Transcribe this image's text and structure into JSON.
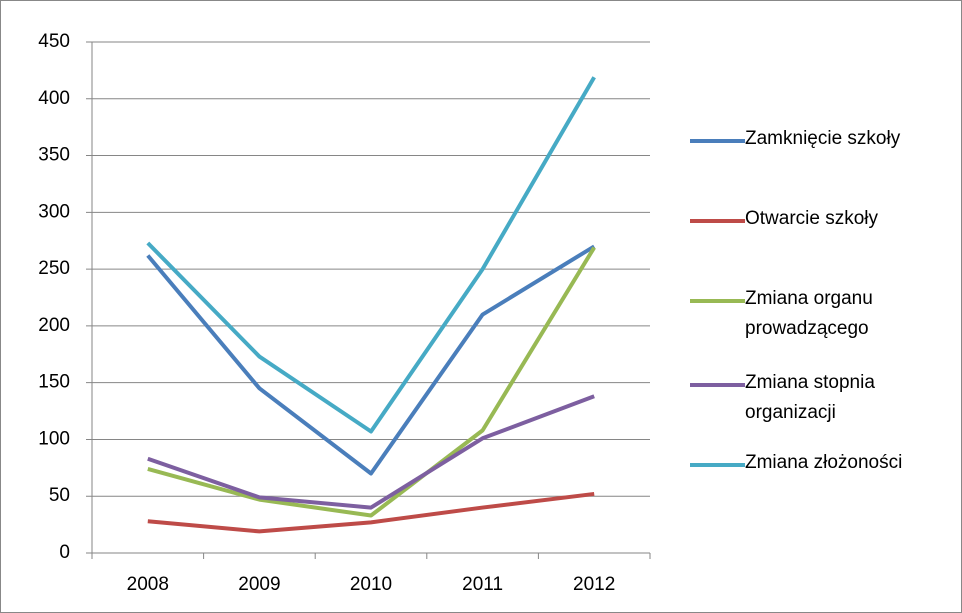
{
  "chart_data": {
    "type": "line",
    "categories": [
      "2008",
      "2009",
      "2010",
      "2011",
      "2012"
    ],
    "series": [
      {
        "name": "Zamknięcie szkoły",
        "color": "#4a7ebb",
        "values": [
          262,
          145,
          70,
          210,
          270
        ]
      },
      {
        "name": "Otwarcie szkoły",
        "color": "#be4b48",
        "values": [
          28,
          19,
          27,
          40,
          52
        ]
      },
      {
        "name": "Zmiana organu prowadzącego",
        "color": "#98b954",
        "values": [
          74,
          47,
          33,
          108,
          269
        ]
      },
      {
        "name": "Zmiana stopnia organizacji",
        "color": "#7d5fa0",
        "values": [
          83,
          49,
          40,
          101,
          138
        ]
      },
      {
        "name": "Zmiana złożoności",
        "color": "#46aac5",
        "values": [
          273,
          173,
          107,
          250,
          419
        ]
      }
    ],
    "ylim": [
      0,
      450
    ],
    "yticks": [
      0,
      50,
      100,
      150,
      200,
      250,
      300,
      350,
      400,
      450
    ],
    "grid": true,
    "legend": "right"
  }
}
